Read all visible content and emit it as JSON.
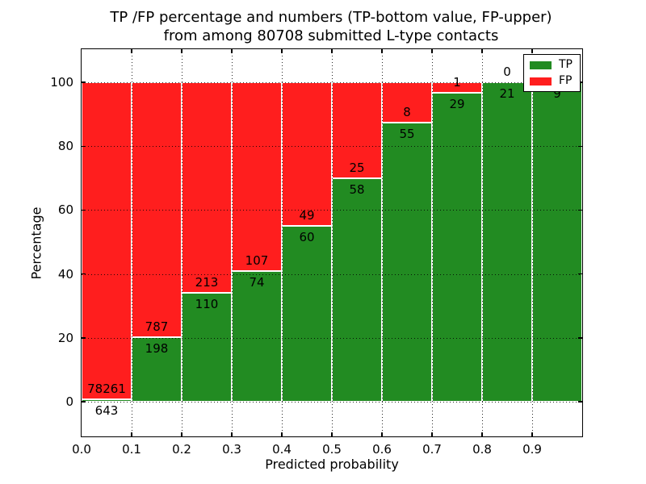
{
  "title": {
    "line1": "TP /FP percentage and numbers (TP-bottom value, FP-upper)",
    "line2": "from among 80708 submitted L-type contacts"
  },
  "axes": {
    "ylabel": "Percentage",
    "xlabel": "Predicted probability",
    "yticks": [
      0,
      20,
      40,
      60,
      80,
      100
    ],
    "xticks": [
      "0.0",
      "0.1",
      "0.2",
      "0.3",
      "0.4",
      "0.5",
      "0.6",
      "0.7",
      "0.8",
      "0.9"
    ]
  },
  "legend": {
    "items": [
      {
        "label": "TP",
        "color": "#228B22"
      },
      {
        "label": "FP",
        "color": "#ff1e1e"
      }
    ]
  },
  "chart_data": {
    "type": "bar",
    "stacked": true,
    "normalized_to_percent": true,
    "title": "TP /FP percentage and numbers (TP-bottom value, FP-upper) from among 80708 submitted L-type contacts",
    "xlabel": "Predicted probability",
    "ylabel": "Percentage",
    "total_submitted": 80708,
    "bin_edges": [
      0.0,
      0.1,
      0.2,
      0.3,
      0.4,
      0.5,
      0.6,
      0.7,
      0.8,
      0.9,
      1.0
    ],
    "categories": [
      "0.0-0.1",
      "0.1-0.2",
      "0.2-0.3",
      "0.3-0.4",
      "0.4-0.5",
      "0.5-0.6",
      "0.6-0.7",
      "0.7-0.8",
      "0.8-0.9",
      "0.9-1.0"
    ],
    "series": [
      {
        "name": "TP",
        "color": "#228B22",
        "counts": [
          643,
          198,
          110,
          74,
          60,
          58,
          55,
          29,
          21,
          9
        ],
        "percent": [
          0.81,
          20.1,
          34.06,
          40.88,
          55.05,
          69.88,
          87.3,
          96.67,
          100.0,
          100.0
        ]
      },
      {
        "name": "FP",
        "color": "#ff1e1e",
        "counts": [
          78261,
          787,
          213,
          107,
          49,
          25,
          8,
          1,
          0,
          0
        ],
        "percent": [
          99.19,
          79.9,
          65.94,
          59.12,
          44.95,
          30.12,
          12.7,
          3.33,
          0.0,
          0.0
        ]
      }
    ],
    "ylim": [
      -11,
      110.5
    ],
    "xlim": [
      0,
      1
    ],
    "grid": true,
    "grid_style": "dotted",
    "bar_edge_color": "#ffffff",
    "legend_position": "upper right",
    "annotation_note": "TP count below segment boundary, FP count above it; FP label of last bin hidden behind legend"
  }
}
